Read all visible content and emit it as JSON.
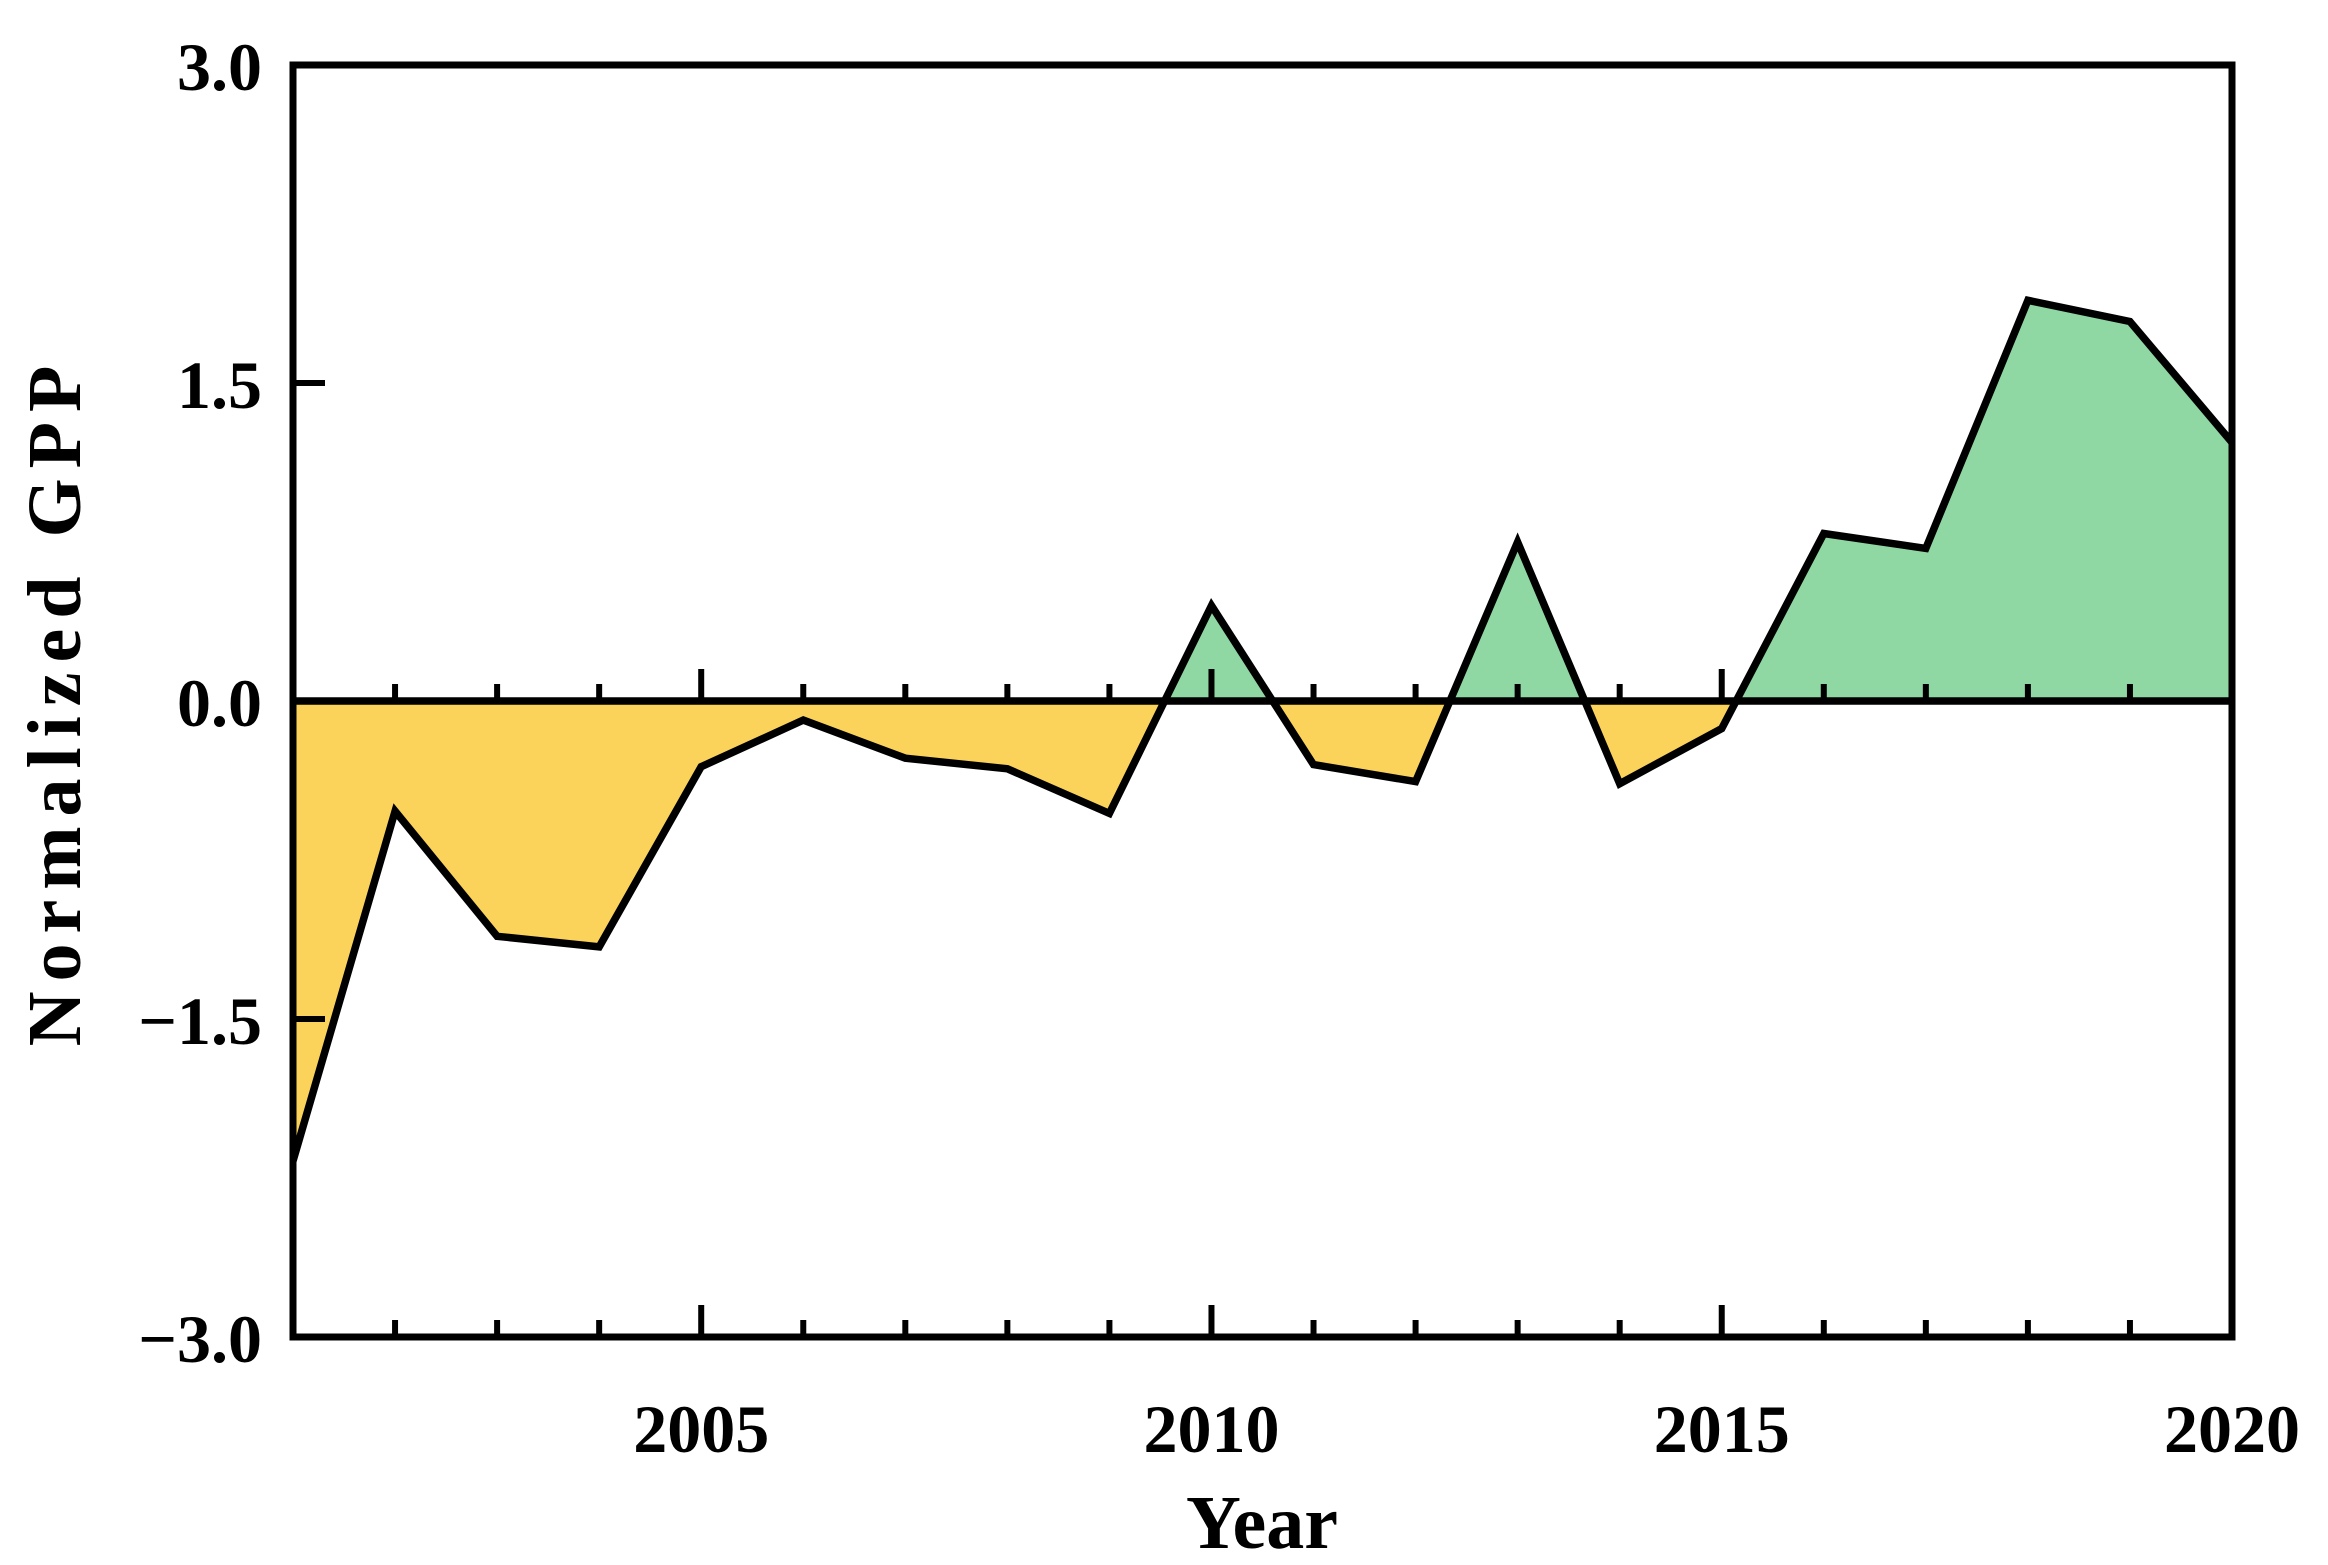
{
  "figure": {
    "background_color": "#ffffff",
    "line_color": "#000000"
  },
  "chart_data": {
    "type": "area",
    "title": "",
    "xlabel": "Year",
    "ylabel": "Normalized  GPP",
    "x": [
      2001,
      2002,
      2003,
      2004,
      2005,
      2006,
      2007,
      2008,
      2009,
      2010,
      2011,
      2012,
      2013,
      2014,
      2015,
      2016,
      2017,
      2018,
      2019,
      2020
    ],
    "values": [
      -2.17,
      -0.52,
      -1.11,
      -1.16,
      -0.31,
      -0.09,
      -0.27,
      -0.32,
      -0.53,
      0.45,
      -0.3,
      -0.38,
      0.75,
      -0.39,
      -0.13,
      0.79,
      0.72,
      1.89,
      1.79,
      1.22
    ],
    "xlim": [
      2001,
      2020
    ],
    "ylim": [
      -3.0,
      3.0
    ],
    "grid": false,
    "legend": null,
    "zero_baseline": 0.0,
    "positive_color": "#8FD7A3",
    "negative_color": "#FBD35B",
    "curve_color": "#000000",
    "y_axis": {
      "ticks": [
        {
          "value": 3.0,
          "label": "3.0"
        },
        {
          "value": 1.5,
          "label": "1.5"
        },
        {
          "value": 0.0,
          "label": "0.0"
        },
        {
          "value": -1.5,
          "label": "−1.5"
        },
        {
          "value": -3.0,
          "label": "−3.0"
        }
      ]
    },
    "x_axis": {
      "major_ticks": [
        {
          "value": 2005,
          "label": "2005"
        },
        {
          "value": 2010,
          "label": "2010"
        },
        {
          "value": 2015,
          "label": "2015"
        },
        {
          "value": 2020,
          "label": "2020"
        }
      ],
      "minor_years": [
        2002,
        2003,
        2004,
        2006,
        2007,
        2008,
        2009,
        2011,
        2012,
        2013,
        2014,
        2016,
        2017,
        2018,
        2019
      ]
    }
  }
}
